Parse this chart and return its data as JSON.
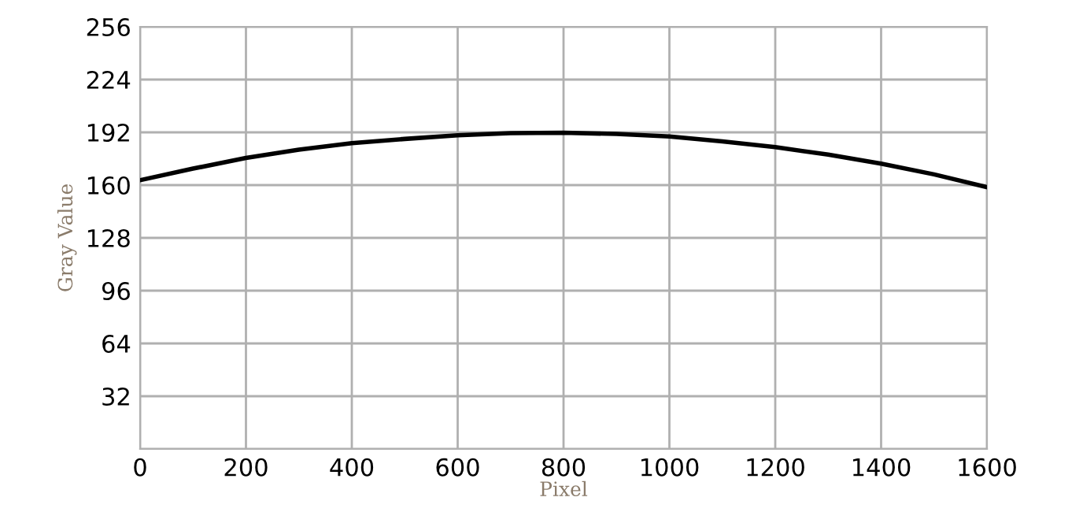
{
  "chart_data": {
    "type": "line",
    "xlabel": "Pixel",
    "ylabel": "Gray Value",
    "x": [
      0,
      100,
      200,
      300,
      400,
      500,
      600,
      700,
      800,
      900,
      1000,
      1100,
      1200,
      1300,
      1400,
      1500,
      1600
    ],
    "series": [
      {
        "color": "#000000",
        "values": [
          163,
          170,
          176.5,
          181.5,
          185.4,
          188,
          190.2,
          191.5,
          191.8,
          191,
          189.5,
          186.5,
          183,
          178.5,
          173,
          166.5,
          158.7
        ]
      }
    ],
    "xlim": [
      0,
      1600
    ],
    "xticks": [
      0,
      200,
      400,
      600,
      800,
      1000,
      1200,
      1400,
      1600
    ],
    "ylim": [
      0,
      256
    ],
    "yticks": [
      {
        "value": 0,
        "label": null
      },
      32,
      64,
      96,
      128,
      160,
      192,
      224,
      256
    ],
    "grid": true,
    "legend": false,
    "marker": "none",
    "line_style": "solid"
  }
}
